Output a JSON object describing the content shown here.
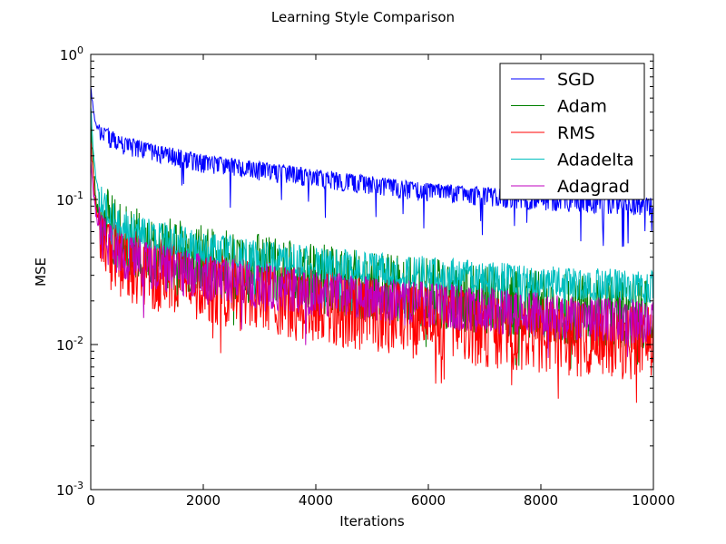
{
  "chart_data": {
    "type": "line",
    "title": "Learning Style Comparison",
    "xlabel": "Iterations",
    "ylabel": "MSE",
    "xlim": [
      0,
      10000
    ],
    "ylim": [
      0.001,
      1
    ],
    "yscale": "log",
    "xticks": [
      "0",
      "2000",
      "4000",
      "6000",
      "8000",
      "10000"
    ],
    "ytick_values": [
      0.001,
      0.01,
      0.1,
      1
    ],
    "yticks_base": "10",
    "yticks_exp": [
      "-3",
      "-2",
      "-1",
      "0"
    ],
    "grid": false,
    "legend_position": "top-right",
    "series": [
      {
        "name": "SGD",
        "color": "#0000ff",
        "x": [
          0,
          50,
          100,
          200,
          500,
          1000,
          2000,
          4000,
          6000,
          8000,
          10000
        ],
        "y": [
          0.6,
          0.4,
          0.32,
          0.3,
          0.26,
          0.23,
          0.19,
          0.15,
          0.12,
          0.105,
          0.095
        ],
        "noise_low": 0.2,
        "noise_high": 0.08
      },
      {
        "name": "Adam",
        "color": "#008000",
        "x": [
          0,
          50,
          100,
          200,
          500,
          1000,
          2000,
          4000,
          6000,
          8000,
          10000
        ],
        "y": [
          0.3,
          0.15,
          0.09,
          0.065,
          0.05,
          0.04,
          0.033,
          0.025,
          0.02,
          0.016,
          0.014
        ],
        "noise_low": 0.35,
        "noise_high": 1.0
      },
      {
        "name": "RMS",
        "color": "#ff0000",
        "x": [
          0,
          50,
          100,
          200,
          500,
          1000,
          2000,
          4000,
          6000,
          8000,
          10000
        ],
        "y": [
          0.28,
          0.13,
          0.085,
          0.06,
          0.045,
          0.038,
          0.03,
          0.022,
          0.017,
          0.014,
          0.012
        ],
        "noise_low": 0.55,
        "noise_high": 0.5
      },
      {
        "name": "Adadelta",
        "color": "#00bfbf",
        "x": [
          0,
          50,
          100,
          200,
          500,
          1000,
          2000,
          4000,
          6000,
          8000,
          10000
        ],
        "y": [
          0.45,
          0.2,
          0.13,
          0.09,
          0.065,
          0.055,
          0.045,
          0.035,
          0.03,
          0.026,
          0.024
        ],
        "noise_low": 0.2,
        "noise_high": 0.35
      },
      {
        "name": "Adagrad",
        "color": "#bf00bf",
        "x": [
          0,
          50,
          100,
          200,
          500,
          1000,
          2000,
          4000,
          6000,
          8000,
          10000
        ],
        "y": [
          0.2,
          0.11,
          0.075,
          0.058,
          0.045,
          0.038,
          0.031,
          0.024,
          0.02,
          0.017,
          0.015
        ],
        "noise_low": 0.35,
        "noise_high": 0.35
      }
    ]
  }
}
